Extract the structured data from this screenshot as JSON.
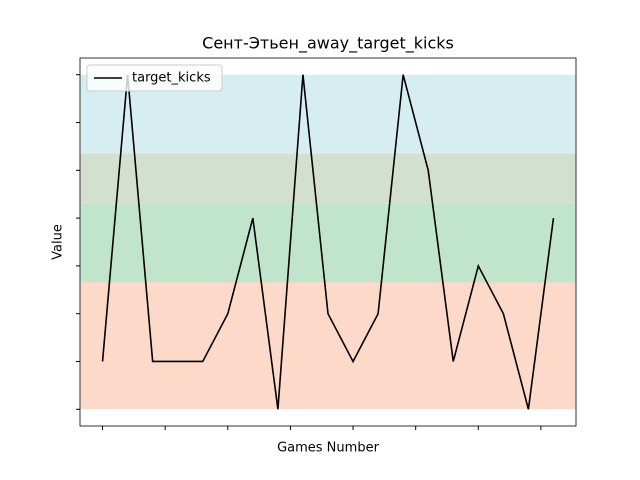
{
  "chart_data": {
    "type": "line",
    "title": "Сент-Этьен_away_target_kicks",
    "xlabel": "Games Number",
    "ylabel": "Value",
    "x": [
      0,
      1,
      2,
      3,
      4,
      5,
      6,
      7,
      8,
      9,
      10,
      11,
      12,
      13,
      14,
      15,
      16,
      17,
      18
    ],
    "series": [
      {
        "name": "target_kicks",
        "color": "#000000",
        "values": [
          1,
          7,
          1,
          1,
          1,
          2,
          4,
          0,
          7,
          2,
          1,
          2,
          7,
          5,
          1,
          3,
          2,
          0,
          4
        ]
      }
    ],
    "xlim": [
      -0.9,
      18.9
    ],
    "ylim": [
      -0.35,
      7.35
    ],
    "xticks": [
      0,
      2.5,
      5,
      7.5,
      10,
      12.5,
      15,
      17.5
    ],
    "yticks": [
      0,
      1,
      2,
      3,
      4,
      5,
      6,
      7
    ],
    "bands": [
      {
        "from": 0,
        "to": 2.65,
        "color": "#fdd9c9"
      },
      {
        "from": 2.65,
        "to": 4.3,
        "color": "#c0e5cc"
      },
      {
        "from": 4.3,
        "to": 5.35,
        "color": "#d3e0cf"
      },
      {
        "from": 5.35,
        "to": 7,
        "color": "#d6eef2"
      }
    ],
    "legend": "upper left"
  }
}
